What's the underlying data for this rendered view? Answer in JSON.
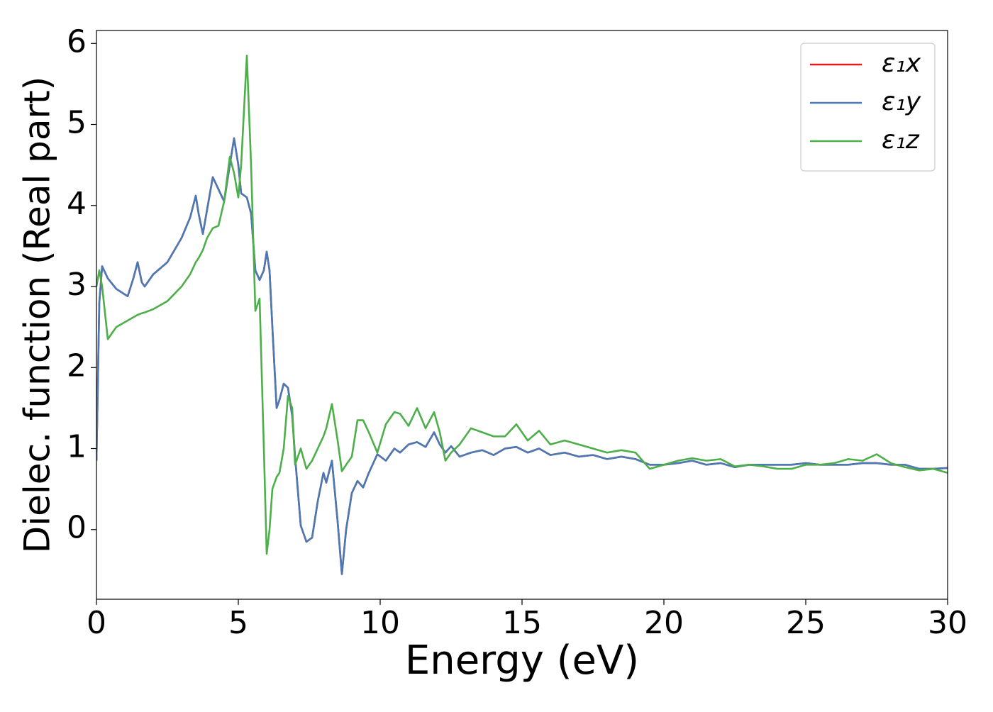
{
  "chart_data": {
    "type": "line",
    "xlabel": "Energy (eV)",
    "ylabel": "Dielec. function (Real part)",
    "xlim": [
      0,
      30
    ],
    "ylim": [
      -0.86,
      6.16
    ],
    "xticks": [
      0,
      5,
      10,
      15,
      20,
      25,
      30
    ],
    "yticks": [
      0,
      1,
      2,
      3,
      4,
      5,
      6
    ],
    "legend": "upper right",
    "x": [
      0,
      0.1,
      0.2,
      0.4,
      0.7,
      1.1,
      1.3,
      1.45,
      1.6,
      1.7,
      2.0,
      2.5,
      3.0,
      3.3,
      3.5,
      3.6,
      3.75,
      3.9,
      4.1,
      4.3,
      4.5,
      4.7,
      4.85,
      5.0,
      5.1,
      5.3,
      5.45,
      5.6,
      5.75,
      5.9,
      6.0,
      6.1,
      6.2,
      6.35,
      6.45,
      6.6,
      6.75,
      6.9,
      7.0,
      7.2,
      7.4,
      7.6,
      7.8,
      8.0,
      8.1,
      8.3,
      8.5,
      8.65,
      8.8,
      9.0,
      9.2,
      9.4,
      9.6,
      9.9,
      10.2,
      10.5,
      10.7,
      11.0,
      11.3,
      11.6,
      11.9,
      12.1,
      12.3,
      12.5,
      12.8,
      13.2,
      13.6,
      14.0,
      14.4,
      14.8,
      15.2,
      15.6,
      16.0,
      16.5,
      17.0,
      17.5,
      18.0,
      18.5,
      19.0,
      19.5,
      20.0,
      20.5,
      21.0,
      21.5,
      22.0,
      22.5,
      23.0,
      23.5,
      24.0,
      24.5,
      25.0,
      25.5,
      26.0,
      26.5,
      27.0,
      27.5,
      28.0,
      28.5,
      29.0,
      29.5,
      30.0
    ],
    "series": [
      {
        "name": "ε₁x",
        "color": "#e41a1c",
        "values": [
          0.85,
          2.8,
          3.25,
          3.1,
          2.97,
          2.88,
          3.1,
          3.3,
          3.05,
          3.0,
          3.15,
          3.3,
          3.6,
          3.85,
          4.12,
          3.9,
          3.65,
          3.95,
          4.35,
          4.2,
          4.05,
          4.5,
          4.83,
          4.5,
          4.15,
          4.1,
          3.9,
          3.2,
          3.08,
          3.2,
          3.43,
          3.2,
          2.5,
          1.5,
          1.6,
          1.8,
          1.75,
          1.4,
          0.9,
          0.05,
          -0.15,
          -0.1,
          0.35,
          0.7,
          0.58,
          0.85,
          0.1,
          -0.55,
          0.0,
          0.45,
          0.6,
          0.52,
          0.7,
          0.93,
          0.85,
          1.0,
          0.95,
          1.05,
          1.08,
          1.02,
          1.2,
          1.05,
          0.95,
          1.03,
          0.9,
          0.95,
          0.98,
          0.92,
          1.0,
          1.02,
          0.95,
          1.0,
          0.92,
          0.95,
          0.9,
          0.92,
          0.87,
          0.9,
          0.87,
          0.8,
          0.8,
          0.82,
          0.85,
          0.8,
          0.82,
          0.77,
          0.8,
          0.8,
          0.8,
          0.8,
          0.82,
          0.8,
          0.8,
          0.8,
          0.82,
          0.82,
          0.8,
          0.8,
          0.75,
          0.75,
          0.76
        ]
      },
      {
        "name": "ε₁y",
        "color": "#4a7ab5",
        "values": [
          0.85,
          2.8,
          3.25,
          3.1,
          2.97,
          2.88,
          3.1,
          3.3,
          3.05,
          3.0,
          3.15,
          3.3,
          3.6,
          3.85,
          4.12,
          3.9,
          3.65,
          3.95,
          4.35,
          4.2,
          4.05,
          4.5,
          4.83,
          4.5,
          4.15,
          4.1,
          3.9,
          3.2,
          3.08,
          3.2,
          3.43,
          3.2,
          2.5,
          1.5,
          1.6,
          1.8,
          1.75,
          1.4,
          0.9,
          0.05,
          -0.15,
          -0.1,
          0.35,
          0.7,
          0.58,
          0.85,
          0.1,
          -0.55,
          0.0,
          0.45,
          0.6,
          0.52,
          0.7,
          0.93,
          0.85,
          1.0,
          0.95,
          1.05,
          1.08,
          1.02,
          1.2,
          1.05,
          0.95,
          1.03,
          0.9,
          0.95,
          0.98,
          0.92,
          1.0,
          1.02,
          0.95,
          1.0,
          0.92,
          0.95,
          0.9,
          0.92,
          0.87,
          0.9,
          0.87,
          0.8,
          0.8,
          0.82,
          0.85,
          0.8,
          0.82,
          0.77,
          0.8,
          0.8,
          0.8,
          0.8,
          0.82,
          0.8,
          0.8,
          0.8,
          0.82,
          0.82,
          0.8,
          0.8,
          0.75,
          0.75,
          0.76
        ]
      },
      {
        "name": "ε₁z",
        "color": "#4daf4a",
        "values": [
          3.0,
          3.2,
          3.0,
          2.35,
          2.5,
          2.58,
          2.62,
          2.65,
          2.67,
          2.68,
          2.72,
          2.82,
          3.0,
          3.15,
          3.3,
          3.35,
          3.45,
          3.6,
          3.72,
          3.75,
          4.05,
          4.6,
          4.4,
          4.1,
          4.5,
          5.85,
          4.5,
          2.7,
          2.85,
          1.0,
          -0.3,
          0.0,
          0.5,
          0.65,
          0.7,
          1.0,
          1.65,
          1.5,
          0.8,
          1.0,
          0.75,
          0.85,
          1.0,
          1.15,
          1.25,
          1.55,
          1.1,
          0.72,
          0.8,
          0.9,
          1.35,
          1.35,
          1.2,
          0.95,
          1.3,
          1.45,
          1.43,
          1.28,
          1.5,
          1.25,
          1.45,
          1.2,
          0.85,
          0.95,
          1.05,
          1.25,
          1.2,
          1.15,
          1.15,
          1.3,
          1.1,
          1.22,
          1.05,
          1.1,
          1.05,
          1.0,
          0.95,
          0.98,
          0.95,
          0.75,
          0.8,
          0.85,
          0.88,
          0.85,
          0.87,
          0.78,
          0.8,
          0.78,
          0.75,
          0.75,
          0.8,
          0.8,
          0.82,
          0.87,
          0.85,
          0.93,
          0.82,
          0.77,
          0.73,
          0.75,
          0.7
        ]
      }
    ]
  }
}
